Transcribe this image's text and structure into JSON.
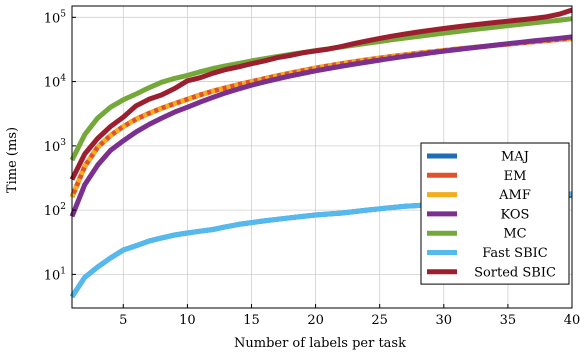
{
  "chart_data": {
    "type": "line",
    "title": "",
    "xlabel": "Number of labels per task",
    "ylabel": "Time (ms)",
    "xlim": [
      1,
      40
    ],
    "ylim": [
      3,
      150000
    ],
    "yscale": "log",
    "grid": true,
    "legend_position": "lower-right",
    "x_ticks": [
      5,
      10,
      15,
      20,
      25,
      30,
      35,
      40
    ],
    "y_ticks": [
      {
        "value": 10,
        "exp": "1"
      },
      {
        "value": 100,
        "exp": "2"
      },
      {
        "value": 1000,
        "exp": "3"
      },
      {
        "value": 10000,
        "exp": "4"
      },
      {
        "value": 100000,
        "exp": "5"
      }
    ],
    "y_tick_base": "10",
    "x": [
      1,
      2,
      3,
      4,
      5,
      6,
      7,
      8,
      9,
      10,
      11,
      12,
      13,
      14,
      15,
      16,
      17,
      18,
      19,
      20,
      21,
      22,
      23,
      24,
      25,
      26,
      27,
      28,
      29,
      30,
      31,
      32,
      33,
      34,
      35,
      36,
      37,
      38,
      39,
      40
    ],
    "series": [
      {
        "name": "MAJ",
        "color": "#1f6db2",
        "values": [
          4.5,
          9,
          13,
          18,
          24,
          28,
          33,
          37,
          41,
          44,
          47,
          50,
          55,
          60,
          64,
          68,
          72,
          76,
          80,
          84,
          87,
          90,
          95,
          100,
          105,
          110,
          115,
          118,
          122,
          125,
          128,
          132,
          136,
          140,
          145,
          150,
          155,
          160,
          165,
          170
        ]
      },
      {
        "name": "EM",
        "color": "#e1522a",
        "values": [
          160,
          480,
          950,
          1450,
          2000,
          2600,
          3200,
          3850,
          4550,
          5300,
          6200,
          7100,
          8000,
          9000,
          10000,
          11100,
          12300,
          13500,
          14800,
          16200,
          17600,
          19000,
          20400,
          21800,
          23200,
          24700,
          26100,
          27600,
          29000,
          30500,
          32000,
          33500,
          35000,
          36700,
          38300,
          40000,
          41700,
          43500,
          45200,
          47000
        ]
      },
      {
        "name": "AMF",
        "color": "#f2ae1c",
        "values": [
          160,
          480,
          950,
          1450,
          2000,
          2600,
          3200,
          3850,
          4550,
          5300,
          6200,
          7100,
          8000,
          9000,
          10000,
          11100,
          12300,
          13500,
          14800,
          16200,
          17600,
          19000,
          20400,
          21800,
          23200,
          24700,
          26100,
          27600,
          29000,
          30500,
          32000,
          33500,
          35000,
          36700,
          38300,
          40000,
          41700,
          43500,
          45200,
          47000
        ]
      },
      {
        "name": "KOS",
        "color": "#7b2f8e",
        "values": [
          80,
          250,
          500,
          850,
          1200,
          1650,
          2150,
          2700,
          3350,
          4000,
          4800,
          5700,
          6700,
          7700,
          8800,
          9900,
          11000,
          12200,
          13400,
          14700,
          16000,
          17300,
          18700,
          20100,
          21600,
          23100,
          24700,
          26300,
          28000,
          29700,
          31400,
          33200,
          35000,
          36900,
          38800,
          40800,
          42900,
          45000,
          47200,
          49500
        ]
      },
      {
        "name": "MC",
        "color": "#74a93a",
        "values": [
          600,
          1500,
          2700,
          4000,
          5200,
          6400,
          8000,
          9800,
          11200,
          12500,
          14200,
          16000,
          17600,
          19200,
          21000,
          22700,
          24500,
          26400,
          28300,
          30300,
          32400,
          34700,
          37000,
          39400,
          42000,
          44800,
          47600,
          50500,
          53500,
          56600,
          60000,
          63500,
          67000,
          70500,
          74000,
          78000,
          82000,
          86000,
          90000,
          95000
        ]
      },
      {
        "name": "Fast SBIC",
        "color": "#56b9ee",
        "values": [
          4.5,
          9,
          13,
          18,
          24,
          28,
          33,
          37,
          41,
          44,
          47,
          50,
          55,
          60,
          64,
          68,
          72,
          76,
          80,
          84,
          87,
          90,
          95,
          100,
          105,
          110,
          115,
          118,
          122,
          125,
          128,
          132,
          136,
          140,
          145,
          150,
          155,
          160,
          170,
          180
        ]
      },
      {
        "name": "Sorted SBIC",
        "color": "#9b1f2e",
        "values": [
          300,
          750,
          1300,
          2000,
          2800,
          4200,
          5300,
          6200,
          7800,
          10300,
          11500,
          13500,
          15400,
          17000,
          19000,
          21000,
          23500,
          25500,
          28000,
          30000,
          32000,
          35000,
          39000,
          43000,
          47000,
          51000,
          55000,
          59000,
          63000,
          67000,
          71000,
          75000,
          79000,
          83000,
          87000,
          91000,
          96000,
          102000,
          112000,
          130000
        ]
      }
    ]
  }
}
